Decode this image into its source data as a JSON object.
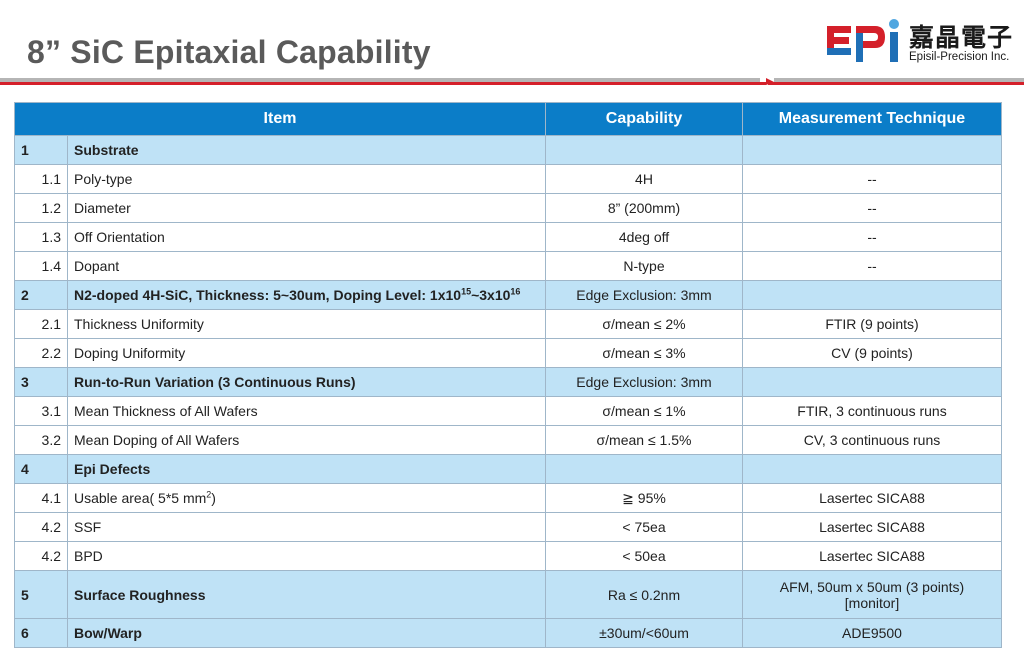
{
  "title": "8” SiC Epitaxial Capability",
  "logo": {
    "mark": "EPI",
    "chinese": "嘉晶電子",
    "english": "Episil-Precision Inc.",
    "colors": {
      "red": "#d4202a",
      "blue": "#1f6fb6"
    }
  },
  "table": {
    "headers": {
      "item": "Item",
      "capability": "Capability",
      "technique": "Measurement Technique"
    },
    "rows": [
      {
        "num": "1",
        "item": "Substrate",
        "capability": "",
        "technique": "",
        "section": true
      },
      {
        "num": "1.1",
        "item": "Poly-type",
        "capability": "4H",
        "technique": "--"
      },
      {
        "num": "1.2",
        "item": "Diameter",
        "capability": "8” (200mm)",
        "technique": "--"
      },
      {
        "num": "1.3",
        "item": "Off Orientation",
        "capability": "4deg off",
        "technique": "--"
      },
      {
        "num": "1.4",
        "item": "Dopant",
        "capability": "N-type",
        "technique": "--"
      },
      {
        "num": "2",
        "item_prefix": "N2-doped 4H-SiC, Thickness: 5~30um, Doping Level: 1x10",
        "exp1": "15",
        "item_mid": "~3x10",
        "exp2": "16",
        "capability": "Edge Exclusion: 3mm",
        "technique": "",
        "section": true
      },
      {
        "num": "2.1",
        "item": "Thickness Uniformity",
        "capability": "σ/mean ≤ 2%",
        "technique": "FTIR (9 points)"
      },
      {
        "num": "2.2",
        "item": "Doping Uniformity",
        "capability": "σ/mean ≤ 3%",
        "technique": "CV (9 points)"
      },
      {
        "num": "3",
        "item": "Run-to-Run Variation (3 Continuous Runs)",
        "capability": "Edge Exclusion: 3mm",
        "technique": "",
        "section": true
      },
      {
        "num": "3.1",
        "item": "Mean Thickness of All Wafers",
        "capability": "σ/mean ≤ 1%",
        "technique": "FTIR, 3 continuous runs"
      },
      {
        "num": "3.2",
        "item": "Mean Doping of All Wafers",
        "capability": "σ/mean ≤ 1.5%",
        "technique": "CV, 3 continuous runs"
      },
      {
        "num": "4",
        "item": "Epi Defects",
        "capability": "",
        "technique": "",
        "section": true
      },
      {
        "num": "4.1",
        "item_prefix": "Usable area( 5*5 mm",
        "exp1": "2",
        "item_suffix": ")",
        "capability": "≧ 95%",
        "technique": "Lasertec SICA88"
      },
      {
        "num": "4.2",
        "item": "SSF",
        "capability": "< 75ea",
        "technique": "Lasertec SICA88"
      },
      {
        "num": "4.2",
        "item": "BPD",
        "capability": "< 50ea",
        "technique": "Lasertec SICA88"
      },
      {
        "num": "5",
        "item": "Surface Roughness",
        "capability": "Ra ≤ 0.2nm",
        "technique_line1": "AFM, 50um x 50um (3 points)",
        "technique_line2": "[monitor]",
        "section": true
      },
      {
        "num": "6",
        "item": "Bow/Warp",
        "capability": "±30um/<60um",
        "technique": "ADE9500",
        "section": true
      }
    ]
  }
}
